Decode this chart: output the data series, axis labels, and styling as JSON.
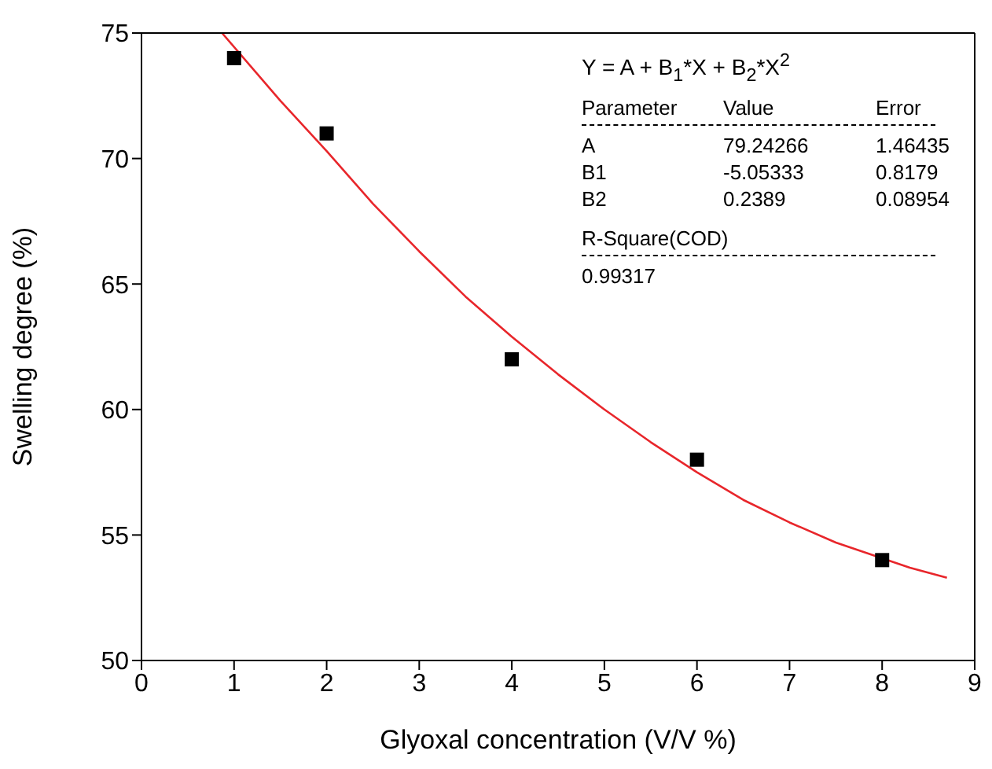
{
  "chart_data": {
    "type": "scatter",
    "xlabel": "Glyoxal concentration (V/V %)",
    "ylabel": "Swelling degree (%)",
    "xlim": [
      0,
      9
    ],
    "xticks": [
      0,
      1,
      2,
      3,
      4,
      5,
      6,
      7,
      8,
      9
    ],
    "ylim": [
      50,
      75
    ],
    "yticks": [
      50,
      55,
      60,
      65,
      70,
      75
    ],
    "series": [
      {
        "color": "#000000",
        "marker": "square",
        "x": [
          1,
          2,
          4,
          6,
          8
        ],
        "values": [
          74,
          71,
          62,
          58,
          54
        ]
      },
      {
        "type": "line",
        "color": "#e8262b",
        "marker": "none",
        "line_style": "solid",
        "x": [
          0.87,
          1.5,
          2,
          2.5,
          3,
          3.5,
          4,
          4.5,
          5,
          5.5,
          6,
          6.5,
          7,
          7.5,
          8.3,
          8.7
        ],
        "values": [
          75,
          72.3,
          70.3,
          68.2,
          66.3,
          64.5,
          62.9,
          61.4,
          60.0,
          58.7,
          57.5,
          56.4,
          55.5,
          54.7,
          53.7,
          53.3
        ]
      }
    ],
    "annotations": [
      "Y = A + B$_{1}$*X + B$_{2}$*X$^{2}$",
      "Parameter",
      "Value",
      "Error",
      "A",
      "79.24266",
      "1.46435",
      "B1",
      "-5.05333",
      "0.8179",
      "B2",
      "0.2389",
      "0.08954",
      "R-Square(COD)",
      "0.99317"
    ]
  }
}
